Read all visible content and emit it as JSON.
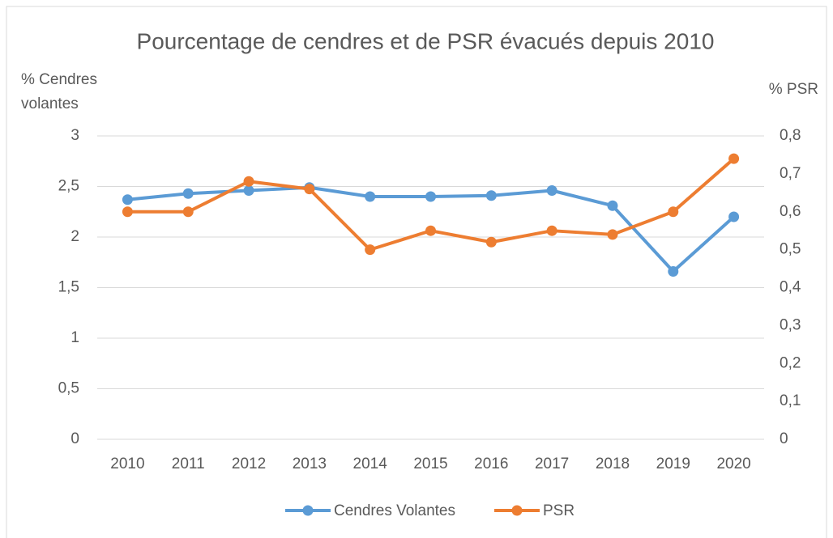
{
  "chart_data": {
    "type": "line",
    "title": "Pourcentage de cendres et de PSR évacués depuis 2010",
    "y_label": "% Cendres volantes",
    "y2_label": "% PSR",
    "categories": [
      "2010",
      "2011",
      "2012",
      "2013",
      "2014",
      "2015",
      "2016",
      "2017",
      "2018",
      "2019",
      "2020"
    ],
    "series": [
      {
        "name": "Cendres Volantes",
        "color": "#5b9bd5",
        "values": [
          2.37,
          2.43,
          2.46,
          2.49,
          2.4,
          2.4,
          2.41,
          2.46,
          2.31,
          1.66,
          2.2
        ]
      },
      {
        "name": "PSR",
        "color": "#ed7d31",
        "axis": "y2",
        "values": [
          0.6,
          0.6,
          0.68,
          0.66,
          0.5,
          0.55,
          0.52,
          0.55,
          0.54,
          0.6,
          0.74
        ]
      }
    ],
    "ylim": [
      0,
      3
    ],
    "yticks": [
      0,
      {
        "value": 0.5,
        "label": "0,5"
      },
      1,
      {
        "value": 1.5,
        "label": "1,5"
      },
      2,
      {
        "value": 2.5,
        "label": "2,5"
      },
      3
    ],
    "y2lim": [
      0,
      0.8
    ],
    "y2ticks": [
      0,
      {
        "value": 0.1,
        "label": "0,1"
      },
      {
        "value": 0.2,
        "label": "0,2"
      },
      {
        "value": 0.3,
        "label": "0,3"
      },
      {
        "value": 0.4,
        "label": "0,4"
      },
      {
        "value": 0.5,
        "label": "0,5"
      },
      {
        "value": 0.6,
        "label": "0,6"
      },
      {
        "value": 0.7,
        "label": "0,7"
      },
      {
        "value": 0.8,
        "label": "0,8"
      }
    ],
    "grid": true,
    "legend": "bottom"
  }
}
